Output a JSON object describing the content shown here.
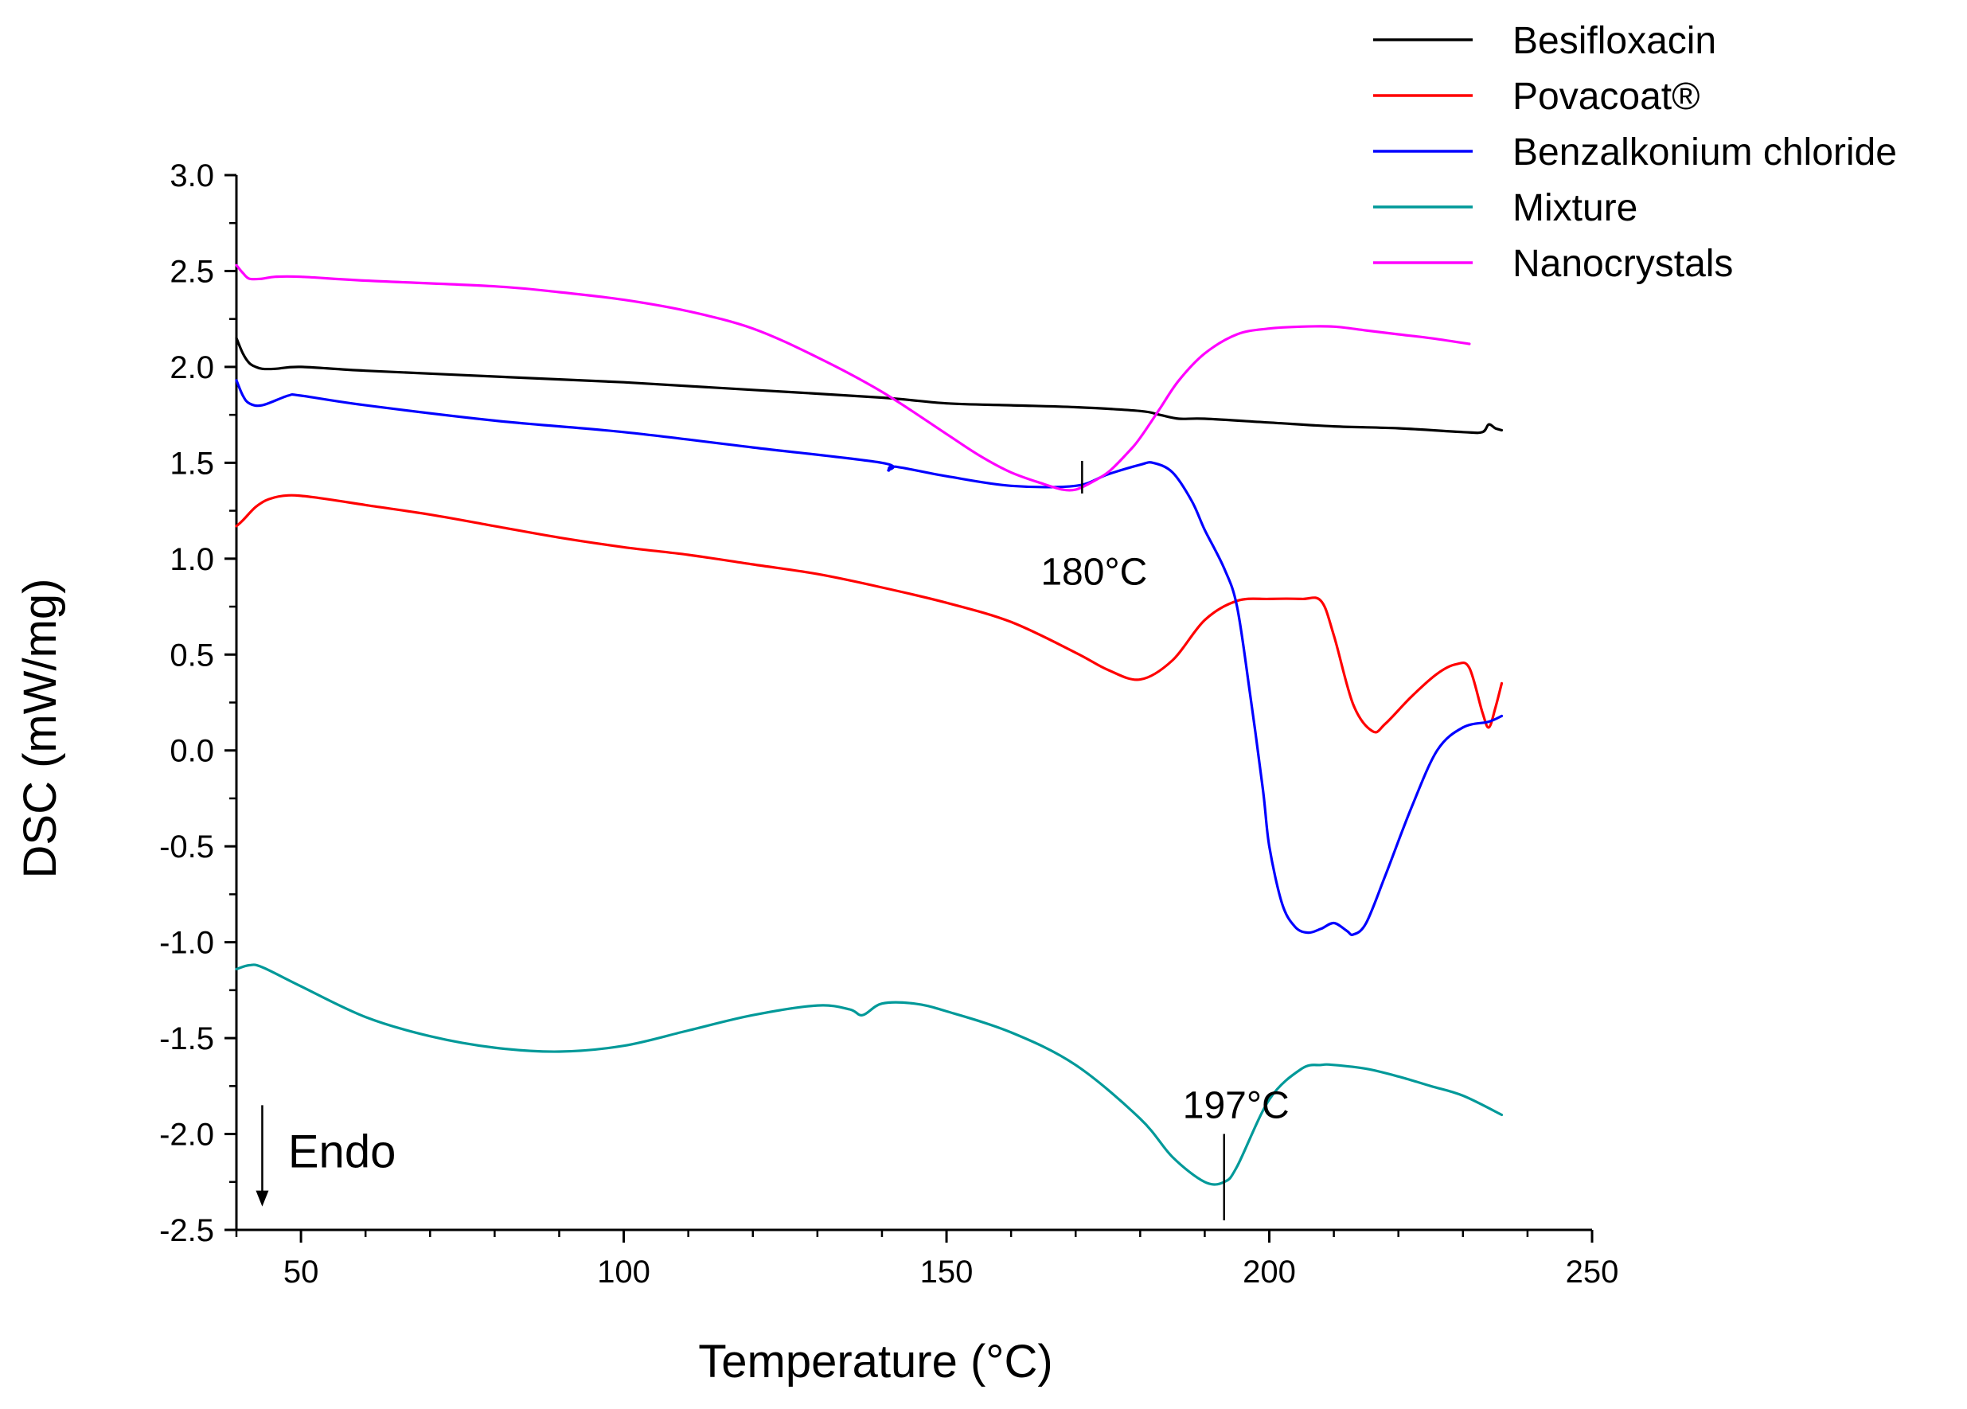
{
  "chart_data": {
    "type": "line",
    "title": "",
    "xlabel": "Temperature (°C)",
    "ylabel": "DSC (mW/mg)",
    "xlim": [
      40,
      250
    ],
    "ylim": [
      -2.5,
      3.0
    ],
    "x_ticks": [
      50,
      100,
      150,
      200,
      250
    ],
    "x_tick_labels": [
      "50",
      "100",
      "150",
      "200",
      "250"
    ],
    "y_ticks": [
      -2.5,
      -2.0,
      -1.5,
      -1.0,
      -0.5,
      0.0,
      0.5,
      1.0,
      1.5,
      2.0,
      2.5,
      3.0
    ],
    "y_tick_labels": [
      "-2.5",
      "-2.0",
      "-1.5",
      "-1.0",
      "-0.5",
      "0.0",
      "0.5",
      "1.0",
      "1.5",
      "2.0",
      "2.5",
      "3.0"
    ],
    "grid": false,
    "legend_position": "top-right",
    "series": [
      {
        "name": "Besifloxacin",
        "color": "#000000",
        "x": [
          40,
          41,
          42,
          43,
          44,
          46,
          50,
          60,
          80,
          100,
          120,
          140,
          150,
          160,
          170,
          180,
          183,
          186,
          190,
          200,
          210,
          220,
          230,
          233,
          234,
          235,
          236
        ],
        "y": [
          2.15,
          2.07,
          2.02,
          2.0,
          1.99,
          1.99,
          2.0,
          1.98,
          1.95,
          1.92,
          1.88,
          1.84,
          1.81,
          1.8,
          1.79,
          1.77,
          1.75,
          1.73,
          1.73,
          1.71,
          1.69,
          1.68,
          1.66,
          1.66,
          1.7,
          1.68,
          1.67
        ]
      },
      {
        "name": "Povacoat®",
        "color": "#ff0000",
        "x": [
          40,
          41,
          43,
          45,
          48,
          52,
          60,
          70,
          80,
          90,
          100,
          110,
          120,
          130,
          140,
          150,
          160,
          170,
          175,
          180,
          185,
          190,
          195,
          200,
          205,
          208,
          210,
          213,
          216,
          218,
          222,
          226,
          229,
          231,
          233,
          234,
          235,
          236
        ],
        "y": [
          1.17,
          1.2,
          1.27,
          1.31,
          1.33,
          1.32,
          1.28,
          1.23,
          1.17,
          1.11,
          1.06,
          1.02,
          0.97,
          0.92,
          0.85,
          0.77,
          0.67,
          0.51,
          0.42,
          0.37,
          0.47,
          0.68,
          0.78,
          0.79,
          0.79,
          0.78,
          0.6,
          0.24,
          0.1,
          0.14,
          0.28,
          0.4,
          0.45,
          0.43,
          0.2,
          0.12,
          0.22,
          0.35
        ]
      },
      {
        "name": "Benzalkonium chloride",
        "color": "#0000ff",
        "x": [
          40,
          41,
          42,
          44,
          48,
          50,
          60,
          80,
          100,
          120,
          140,
          141,
          142,
          150,
          160,
          170,
          175,
          180,
          182,
          185,
          188,
          190,
          193,
          195,
          197,
          199,
          200,
          202,
          204,
          206,
          208,
          210,
          212,
          213,
          215,
          218,
          222,
          226,
          230,
          234,
          236
        ],
        "y": [
          1.93,
          1.85,
          1.81,
          1.8,
          1.85,
          1.85,
          1.8,
          1.72,
          1.66,
          1.58,
          1.5,
          1.46,
          1.48,
          1.43,
          1.38,
          1.38,
          1.44,
          1.49,
          1.5,
          1.45,
          1.3,
          1.15,
          0.95,
          0.75,
          0.3,
          -0.2,
          -0.5,
          -0.8,
          -0.92,
          -0.95,
          -0.93,
          -0.9,
          -0.94,
          -0.96,
          -0.9,
          -0.65,
          -0.3,
          0.0,
          0.12,
          0.15,
          0.18
        ]
      },
      {
        "name": "Mixture",
        "color": "#009999",
        "x": [
          40,
          42,
          44,
          50,
          60,
          70,
          80,
          90,
          100,
          110,
          120,
          130,
          135,
          137,
          140,
          145,
          150,
          160,
          170,
          180,
          185,
          190,
          193,
          195,
          200,
          205,
          208,
          210,
          215,
          220,
          225,
          230,
          236
        ],
        "y": [
          -1.14,
          -1.12,
          -1.13,
          -1.23,
          -1.39,
          -1.49,
          -1.55,
          -1.57,
          -1.54,
          -1.46,
          -1.38,
          -1.33,
          -1.35,
          -1.38,
          -1.32,
          -1.32,
          -1.36,
          -1.47,
          -1.64,
          -1.92,
          -2.12,
          -2.25,
          -2.25,
          -2.17,
          -1.82,
          -1.66,
          -1.64,
          -1.64,
          -1.66,
          -1.7,
          -1.75,
          -1.8,
          -1.9
        ]
      },
      {
        "name": "Nanocrystals",
        "color": "#ff00ff",
        "x": [
          40,
          41,
          42,
          44,
          46,
          50,
          60,
          80,
          90,
          100,
          110,
          120,
          130,
          140,
          150,
          155,
          160,
          165,
          168,
          170,
          172,
          175,
          178,
          180,
          183,
          186,
          190,
          195,
          200,
          205,
          210,
          215,
          220,
          225,
          231
        ],
        "y": [
          2.53,
          2.49,
          2.46,
          2.46,
          2.47,
          2.47,
          2.45,
          2.42,
          2.39,
          2.35,
          2.29,
          2.2,
          2.05,
          1.87,
          1.65,
          1.54,
          1.45,
          1.39,
          1.36,
          1.36,
          1.39,
          1.45,
          1.55,
          1.63,
          1.78,
          1.93,
          2.07,
          2.17,
          2.2,
          2.21,
          2.21,
          2.19,
          2.17,
          2.15,
          2.12
        ]
      }
    ],
    "annotations": [
      {
        "label": "180°C",
        "x": 171,
        "y_top": 1.51,
        "y_bottom": 1.34,
        "text_x": 171,
        "text_y": 0.93
      },
      {
        "label": "197°C",
        "x": 193,
        "y_top": -2.0,
        "y_bottom": -2.45,
        "text_x": 193,
        "text_y": -1.85
      },
      {
        "label": "Endo",
        "arrow_x": 44,
        "arrow_y_from": -1.85,
        "arrow_y_to": -2.37,
        "text_x": 48,
        "text_y": -2.1
      }
    ]
  }
}
